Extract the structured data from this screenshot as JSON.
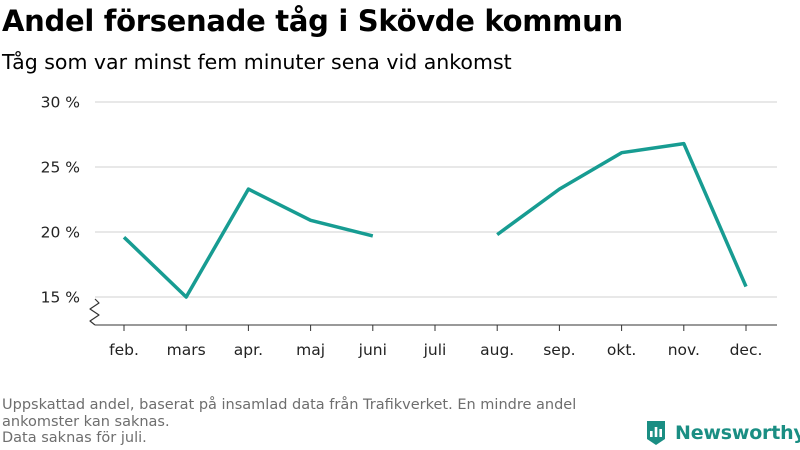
{
  "title": "Andel försenade tåg i Skövde kommun",
  "subtitle": "Tåg som var minst fem minuter sena vid ankomst",
  "footnote": {
    "line1": "Uppskattad andel, baserat på insamlad data från Trafikverket. En mindre andel",
    "line2": "ankomster kan saknas.",
    "line3": "Data saknas för juli."
  },
  "brand": {
    "name": "Newsworthy",
    "icon": "newsworthy-logo-icon",
    "color": "#1a8e83"
  },
  "chart_data": {
    "type": "line",
    "categories": [
      "feb.",
      "mars",
      "apr.",
      "maj",
      "juni",
      "juli",
      "aug.",
      "sep.",
      "okt.",
      "nov.",
      "dec."
    ],
    "series": [
      {
        "values": [
          19.6,
          15.0,
          23.3,
          20.9,
          19.7,
          null,
          19.8,
          23.3,
          26.1,
          26.8,
          15.8
        ],
        "color": "#179c92"
      }
    ],
    "yticks": [
      15,
      20,
      25,
      30
    ],
    "ytick_labels": [
      "15 %",
      "20 %",
      "25 %",
      "30 %"
    ],
    "ylim": [
      15,
      30
    ],
    "axis_break": true,
    "grid": true,
    "xlabel": "",
    "ylabel": ""
  }
}
